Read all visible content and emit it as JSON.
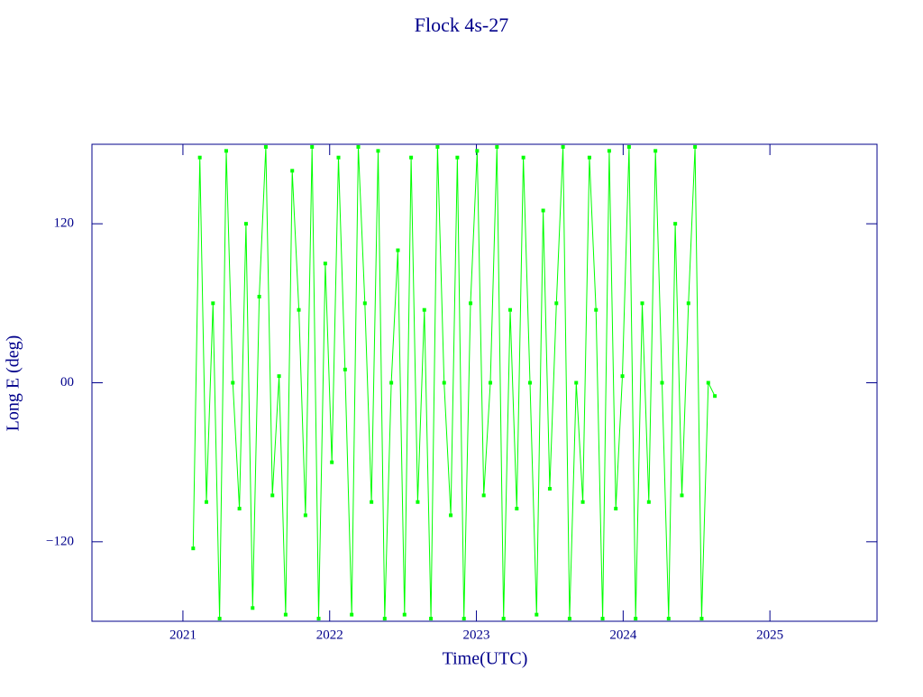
{
  "chart_data": {
    "type": "line",
    "title": "Flock 4s-27",
    "x_label": "Time(UTC)",
    "y_label": "Long E (deg)",
    "x": [
      2021.07,
      2021.115,
      2021.16,
      2021.205,
      2021.25,
      2021.295,
      2021.34,
      2021.385,
      2021.43,
      2021.475,
      2021.52,
      2021.565,
      2021.61,
      2021.655,
      2021.7,
      2021.745,
      2021.79,
      2021.835,
      2021.88,
      2021.925,
      2021.97,
      2022.015,
      2022.06,
      2022.105,
      2022.15,
      2022.195,
      2022.24,
      2022.285,
      2022.33,
      2022.375,
      2022.42,
      2022.465,
      2022.51,
      2022.555,
      2022.6,
      2022.645,
      2022.69,
      2022.735,
      2022.78,
      2022.825,
      2022.87,
      2022.915,
      2022.96,
      2023.005,
      2023.05,
      2023.095,
      2023.14,
      2023.185,
      2023.23,
      2023.275,
      2023.32,
      2023.365,
      2023.41,
      2023.455,
      2023.5,
      2023.545,
      2023.59,
      2023.635,
      2023.68,
      2023.725,
      2023.77,
      2023.815,
      2023.86,
      2023.905,
      2023.95,
      2023.995,
      2024.04,
      2024.085,
      2024.13,
      2024.175,
      2024.22,
      2024.265,
      2024.31,
      2024.355,
      2024.4,
      2024.445,
      2024.49,
      2024.535,
      2024.58,
      2024.625
    ],
    "series": [
      {
        "color": "#00ff00",
        "values": [
          -125,
          170,
          -90,
          60,
          -178,
          175,
          0,
          -95,
          120,
          -170,
          65,
          178,
          -85,
          5,
          -175,
          160,
          55,
          -100,
          178,
          -178,
          90,
          -60,
          170,
          10,
          -175,
          178,
          60,
          -90,
          175,
          -178,
          0,
          100,
          -175,
          170,
          -90,
          55,
          -178,
          178,
          0,
          -100,
          170,
          -178,
          60,
          175,
          -85,
          0,
          178,
          -178,
          55,
          -95,
          170,
          0,
          -175,
          130,
          -80,
          60,
          178,
          -178,
          0,
          -90,
          170,
          55,
          -178,
          175,
          -95,
          5,
          178,
          -178,
          60,
          -90,
          175,
          0,
          -178,
          120,
          -85,
          60,
          178,
          -178,
          0,
          -10
        ]
      }
    ],
    "xlim": [
      2020.38,
      2025.73
    ],
    "xticks": [
      2021,
      2022,
      2023,
      2024,
      2025
    ],
    "ylim": [
      -180,
      180
    ],
    "yticks": [
      {
        "value": -120,
        "label": "−120"
      },
      {
        "value": 0,
        "label": "00"
      },
      120
    ]
  }
}
